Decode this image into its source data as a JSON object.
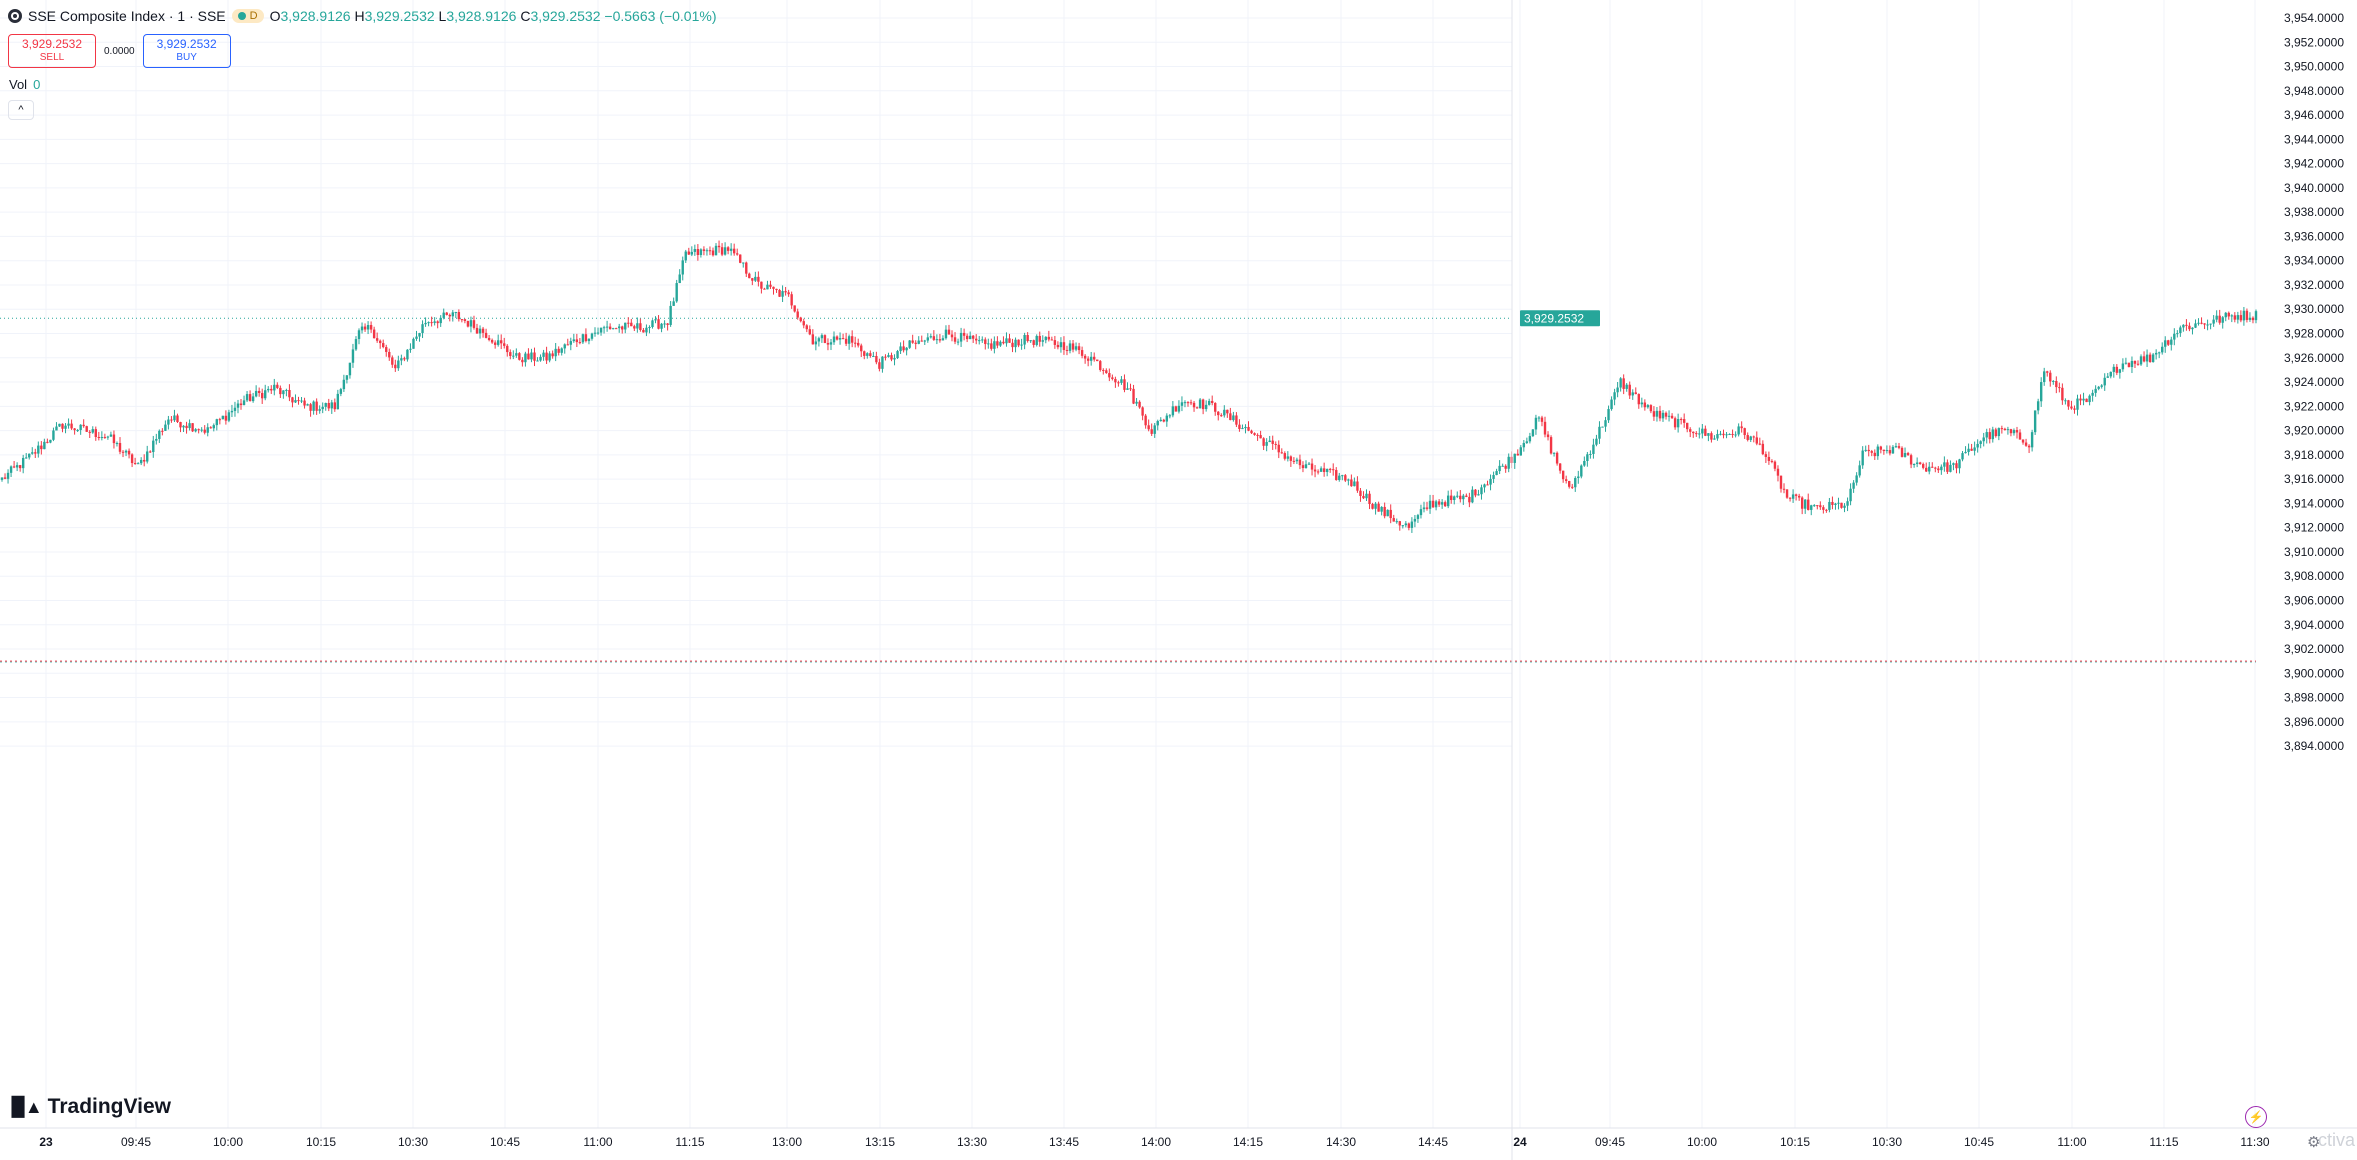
{
  "header": {
    "symbol": "SSE Composite Index · 1 · SSE",
    "badge": "D",
    "o_label": "O",
    "o": "3,928.9126",
    "h_label": "H",
    "h": "3,929.2532",
    "l_label": "L",
    "l": "3,928.9126",
    "c_label": "C",
    "c": "3,929.2532",
    "change": "−0.5663 (−0.01%)"
  },
  "trade": {
    "sell_price": "3,929.2532",
    "sell_label": "SELL",
    "spread": "0.0000",
    "buy_price": "3,929.2532",
    "buy_label": "BUY"
  },
  "volume": {
    "label": "Vol",
    "value": "0"
  },
  "collapse_glyph": "^",
  "branding": {
    "logo_text": "TradingView",
    "watermark": "ctiva"
  },
  "colors": {
    "up": "#26a69a",
    "down": "#f23645",
    "grid": "#f0f3fa",
    "axis_text": "#131722",
    "price_tag": "#26a69a"
  },
  "chart_data": {
    "type": "candlestick",
    "current_price": 3929.2532,
    "current_price_label": "3,929.2532",
    "ylim": [
      3893,
      3955.5
    ],
    "y_ticks": [
      3894,
      3896,
      3898,
      3900,
      3902,
      3904,
      3906,
      3908,
      3910,
      3912,
      3914,
      3916,
      3918,
      3920,
      3922,
      3924,
      3926,
      3928,
      3930,
      3932,
      3934,
      3936,
      3938,
      3940,
      3942,
      3944,
      3946,
      3948,
      3950,
      3952,
      3954
    ],
    "y_tick_labels": [
      "3,894.0000",
      "3,896.0000",
      "3,898.0000",
      "3,900.0000",
      "3,902.0000",
      "3,904.0000",
      "3,906.0000",
      "3,908.0000",
      "3,910.0000",
      "3,912.0000",
      "3,914.0000",
      "3,916.0000",
      "3,918.0000",
      "3,920.0000",
      "3,922.0000",
      "3,924.0000",
      "3,926.0000",
      "3,928.0000",
      "3,930.0000",
      "3,932.0000",
      "3,934.0000",
      "3,936.0000",
      "3,938.0000",
      "3,940.0000",
      "3,942.0000",
      "3,944.0000",
      "3,946.0000",
      "3,948.0000",
      "3,950.0000",
      "3,952.0000",
      "3,954.0000"
    ],
    "x_ticks": [
      "23",
      "09:45",
      "10:00",
      "10:15",
      "10:30",
      "10:45",
      "11:00",
      "11:15",
      "13:00",
      "13:15",
      "13:30",
      "13:45",
      "14:00",
      "14:15",
      "14:30",
      "14:45",
      "24",
      "09:45",
      "10:00",
      "10:15",
      "10:30",
      "10:45",
      "11:00",
      "11:15",
      "11:30"
    ],
    "x_tick_bold": [
      "23",
      "24"
    ],
    "reference_line": 3901.0,
    "anchors": [
      [
        0,
        3916
      ],
      [
        10,
        3918
      ],
      [
        20,
        3920.5
      ],
      [
        35,
        3919.5
      ],
      [
        45,
        3917
      ],
      [
        55,
        3921
      ],
      [
        68,
        3920
      ],
      [
        80,
        3922.5
      ],
      [
        90,
        3923.5
      ],
      [
        100,
        3922
      ],
      [
        110,
        3922
      ],
      [
        118,
        3928
      ],
      [
        122,
        3928.5
      ],
      [
        130,
        3925
      ],
      [
        140,
        3929
      ],
      [
        150,
        3929.5
      ],
      [
        160,
        3928
      ],
      [
        170,
        3926
      ],
      [
        180,
        3926
      ],
      [
        190,
        3927.5
      ],
      [
        200,
        3928.5
      ],
      [
        212,
        3928.5
      ],
      [
        220,
        3929
      ],
      [
        226,
        3934.5
      ],
      [
        240,
        3935
      ],
      [
        250,
        3932
      ],
      [
        260,
        3931
      ],
      [
        268,
        3927.5
      ],
      [
        280,
        3927.5
      ],
      [
        290,
        3925.5
      ],
      [
        300,
        3927
      ],
      [
        312,
        3928
      ],
      [
        325,
        3927
      ],
      [
        340,
        3927.5
      ],
      [
        352,
        3927
      ],
      [
        360,
        3926
      ],
      [
        372,
        3923.5
      ],
      [
        380,
        3920
      ],
      [
        390,
        3922.5
      ],
      [
        400,
        3922
      ],
      [
        415,
        3919.5
      ],
      [
        430,
        3917
      ],
      [
        445,
        3916
      ],
      [
        455,
        3913.5
      ],
      [
        465,
        3912
      ],
      [
        472,
        3914
      ],
      [
        485,
        3914.5
      ],
      [
        500,
        3918
      ],
      [
        508,
        3921
      ],
      [
        512,
        3918.5
      ],
      [
        518,
        3915
      ],
      [
        522,
        3917
      ],
      [
        528,
        3920
      ],
      [
        535,
        3924
      ],
      [
        545,
        3921.5
      ],
      [
        555,
        3920.5
      ],
      [
        565,
        3919.5
      ],
      [
        575,
        3920
      ],
      [
        582,
        3918.5
      ],
      [
        590,
        3914.5
      ],
      [
        600,
        3913.5
      ],
      [
        610,
        3914
      ],
      [
        615,
        3918
      ],
      [
        625,
        3918.5
      ],
      [
        635,
        3917
      ],
      [
        645,
        3917
      ],
      [
        655,
        3919.5
      ],
      [
        662,
        3920
      ],
      [
        670,
        3919
      ],
      [
        675,
        3925
      ],
      [
        683,
        3922
      ],
      [
        690,
        3922.5
      ],
      [
        700,
        3925.5
      ],
      [
        710,
        3926
      ],
      [
        720,
        3928.5
      ],
      [
        730,
        3929
      ],
      [
        738,
        3929.5
      ],
      [
        745,
        3929.5
      ]
    ]
  }
}
